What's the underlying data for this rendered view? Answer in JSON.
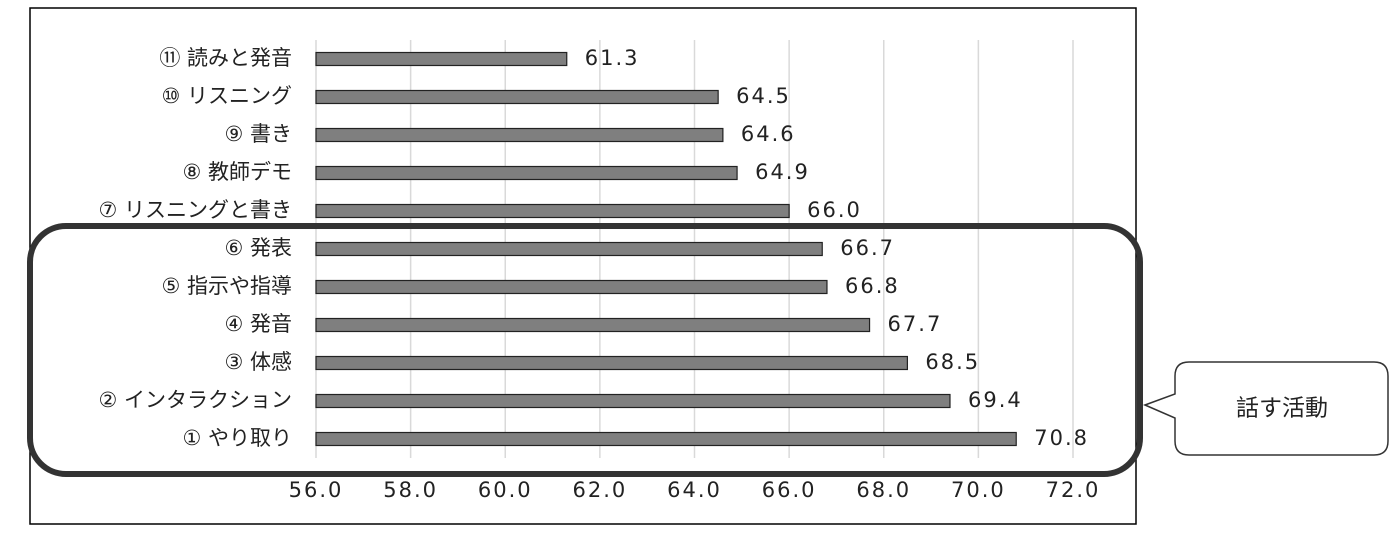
{
  "chart_data": {
    "type": "bar",
    "orientation": "horizontal",
    "categories": [
      "⑪ 読みと発音",
      "⑩ リスニング",
      "⑨ 書き",
      "⑧ 教師デモ",
      "⑦ リスニングと書き",
      "⑥ 発表",
      "⑤ 指示や指導",
      "④ 発音",
      "③ 体感",
      "② インタラクション",
      "① やり取り"
    ],
    "values": [
      61.3,
      64.5,
      64.6,
      64.9,
      66.0,
      66.7,
      66.8,
      67.7,
      68.5,
      69.4,
      70.8
    ],
    "value_labels": [
      "61.3",
      "64.5",
      "64.6",
      "64.9",
      "66.0",
      "66.7",
      "66.8",
      "67.7",
      "68.5",
      "69.4",
      "70.8"
    ],
    "color": "#7f7f7f",
    "xlim": [
      56,
      72
    ],
    "xticks": [
      {
        "value": 56,
        "label": "56.0"
      },
      {
        "value": 58,
        "label": "58.0"
      },
      {
        "value": 60,
        "label": "60.0"
      },
      {
        "value": 62,
        "label": "62.0"
      },
      {
        "value": 64,
        "label": "64.0"
      },
      {
        "value": 66,
        "label": "66.0"
      },
      {
        "value": 68,
        "label": "68.0"
      },
      {
        "value": 70,
        "label": "70.0"
      },
      {
        "value": 72,
        "label": "72.0"
      }
    ],
    "grid": true,
    "annotation": "話す活動"
  }
}
